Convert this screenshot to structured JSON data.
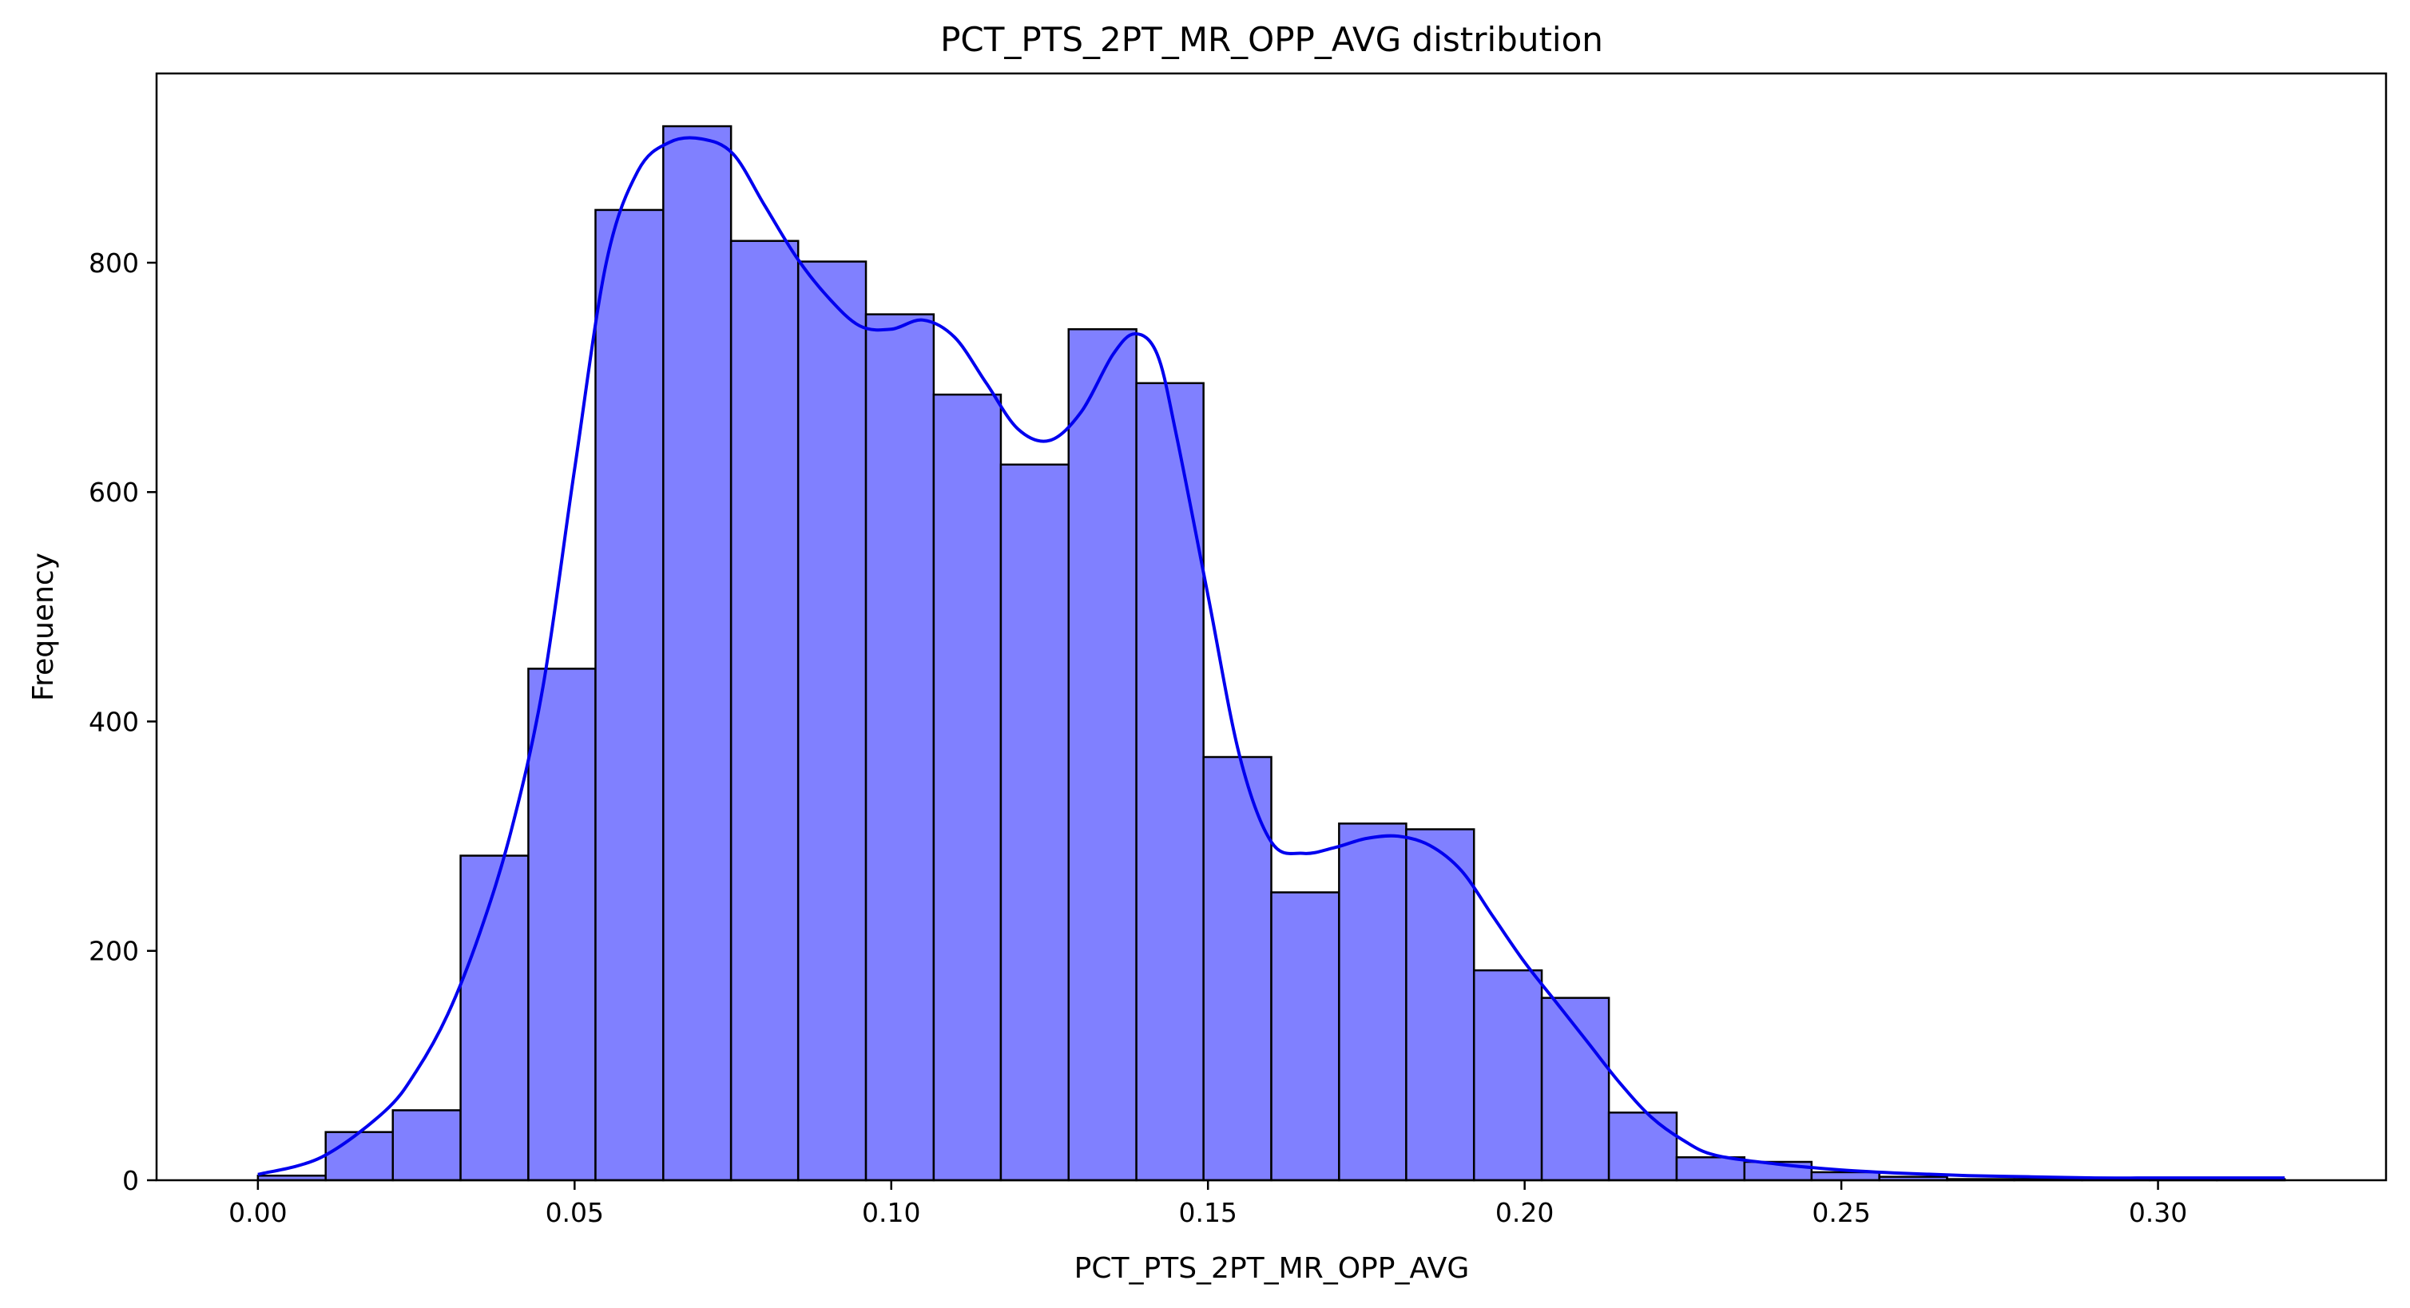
{
  "chart_data": {
    "type": "bar",
    "title": "PCT_PTS_2PT_MR_OPP_AVG distribution",
    "xlabel": "PCT_PTS_2PT_MR_OPP_AVG",
    "ylabel": "Frequency",
    "xlim": [
      -0.016,
      0.336
    ],
    "ylim": [
      0,
      965
    ],
    "grid": false,
    "legend": "none",
    "bar_fill": "#8080ff",
    "bar_edge": "#000000",
    "kde_color": "#0000ee",
    "x_ticks": [
      {
        "value": 0.0,
        "label": "0.00"
      },
      {
        "value": 0.05,
        "label": "0.05"
      },
      {
        "value": 0.1,
        "label": "0.10"
      },
      {
        "value": 0.15,
        "label": "0.15"
      },
      {
        "value": 0.2,
        "label": "0.20"
      },
      {
        "value": 0.25,
        "label": "0.25"
      },
      {
        "value": 0.3,
        "label": "0.30"
      }
    ],
    "y_ticks": [
      {
        "value": 0,
        "label": "0"
      },
      {
        "value": 200,
        "label": "200"
      },
      {
        "value": 400,
        "label": "400"
      },
      {
        "value": 600,
        "label": "600"
      },
      {
        "value": 800,
        "label": "800"
      }
    ],
    "bins": [
      {
        "x0": 0.0,
        "x1": 0.0107,
        "count": 4
      },
      {
        "x0": 0.0107,
        "x1": 0.0213,
        "count": 42
      },
      {
        "x0": 0.0213,
        "x1": 0.032,
        "count": 61
      },
      {
        "x0": 0.032,
        "x1": 0.0427,
        "count": 283
      },
      {
        "x0": 0.0427,
        "x1": 0.0533,
        "count": 446
      },
      {
        "x0": 0.0533,
        "x1": 0.064,
        "count": 846
      },
      {
        "x0": 0.064,
        "x1": 0.0747,
        "count": 919
      },
      {
        "x0": 0.0747,
        "x1": 0.0853,
        "count": 819
      },
      {
        "x0": 0.0853,
        "x1": 0.096,
        "count": 801
      },
      {
        "x0": 0.096,
        "x1": 0.1067,
        "count": 755
      },
      {
        "x0": 0.1067,
        "x1": 0.1173,
        "count": 685
      },
      {
        "x0": 0.1173,
        "x1": 0.128,
        "count": 624
      },
      {
        "x0": 0.128,
        "x1": 0.1387,
        "count": 742
      },
      {
        "x0": 0.1387,
        "x1": 0.1493,
        "count": 695
      },
      {
        "x0": 0.1493,
        "x1": 0.16,
        "count": 369
      },
      {
        "x0": 0.16,
        "x1": 0.1707,
        "count": 251
      },
      {
        "x0": 0.1707,
        "x1": 0.1813,
        "count": 311
      },
      {
        "x0": 0.1813,
        "x1": 0.192,
        "count": 306
      },
      {
        "x0": 0.192,
        "x1": 0.2027,
        "count": 183
      },
      {
        "x0": 0.2027,
        "x1": 0.2133,
        "count": 159
      },
      {
        "x0": 0.2133,
        "x1": 0.224,
        "count": 59
      },
      {
        "x0": 0.224,
        "x1": 0.2347,
        "count": 20
      },
      {
        "x0": 0.2347,
        "x1": 0.2453,
        "count": 16
      },
      {
        "x0": 0.2453,
        "x1": 0.256,
        "count": 7
      },
      {
        "x0": 0.256,
        "x1": 0.2667,
        "count": 3
      },
      {
        "x0": 0.2667,
        "x1": 0.2773,
        "count": 1
      },
      {
        "x0": 0.2773,
        "x1": 0.288,
        "count": 1
      },
      {
        "x0": 0.288,
        "x1": 0.2987,
        "count": 1
      },
      {
        "x0": 0.2987,
        "x1": 0.3093,
        "count": 1
      },
      {
        "x0": 0.3093,
        "x1": 0.32,
        "count": 1
      }
    ],
    "kde_curve": {
      "x": [
        0.0,
        0.01,
        0.02,
        0.025,
        0.03,
        0.035,
        0.04,
        0.045,
        0.05,
        0.055,
        0.06,
        0.065,
        0.07,
        0.075,
        0.08,
        0.085,
        0.09,
        0.095,
        0.1,
        0.105,
        0.11,
        0.115,
        0.12,
        0.125,
        0.13,
        0.135,
        0.1385,
        0.142,
        0.145,
        0.15,
        0.155,
        0.16,
        0.165,
        0.17,
        0.175,
        0.18,
        0.185,
        0.19,
        0.195,
        0.2,
        0.205,
        0.21,
        0.215,
        0.22,
        0.225,
        0.23,
        0.24,
        0.25,
        0.26,
        0.27,
        0.28,
        0.29,
        0.3,
        0.31,
        0.32
      ],
      "y": [
        5,
        20,
        60,
        95,
        145,
        215,
        305,
        430,
        620,
        800,
        880,
        905,
        908,
        895,
        850,
        805,
        770,
        745,
        742,
        750,
        735,
        695,
        655,
        645,
        670,
        720,
        738,
        720,
        650,
        510,
        370,
        295,
        285,
        290,
        298,
        300,
        292,
        270,
        230,
        190,
        155,
        120,
        85,
        55,
        35,
        22,
        14,
        9,
        6,
        4,
        3,
        2,
        2,
        2,
        2
      ]
    }
  }
}
